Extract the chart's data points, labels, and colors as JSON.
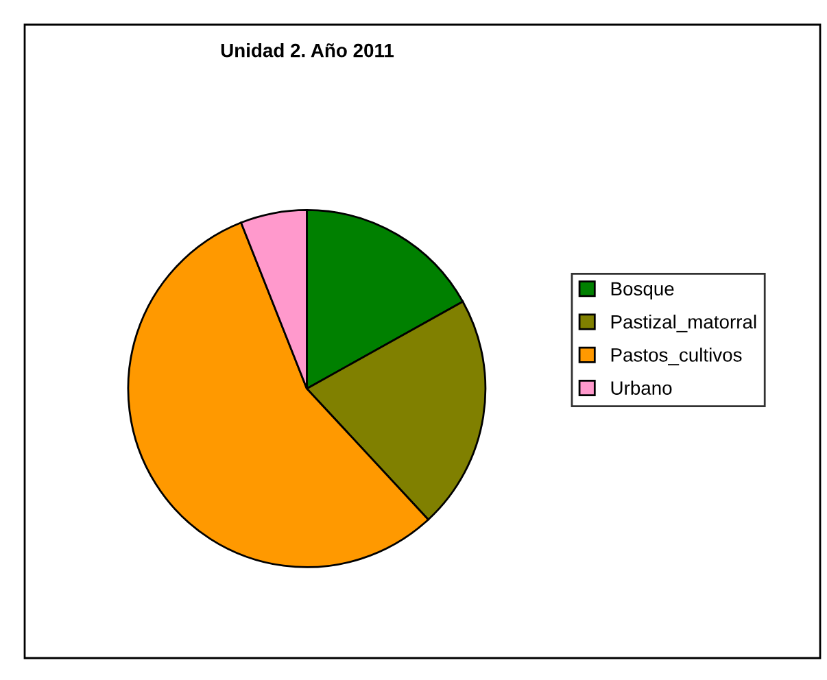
{
  "chart_data": {
    "type": "pie",
    "title": "Unidad 2. Año 2011",
    "categories": [
      "Bosque",
      "Pastizal_matorral",
      "Pastos_cultivos",
      "Urbano"
    ],
    "values": [
      16.9,
      21.2,
      55.9,
      6.0
    ],
    "colors": [
      "#008000",
      "#808000",
      "#ff9900",
      "#ff99cc"
    ],
    "legend": "right"
  }
}
